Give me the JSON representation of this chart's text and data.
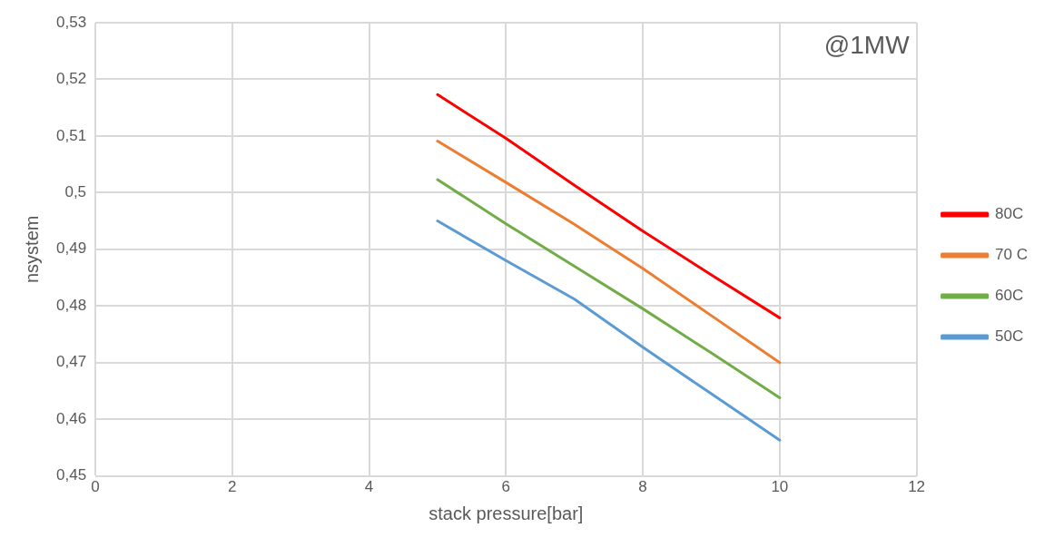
{
  "chart_data": {
    "type": "line",
    "xlabel": "stack pressure[bar]",
    "ylabel": "nsystem",
    "annotations": [
      "@1MW"
    ],
    "x": [
      5,
      6,
      7,
      8,
      9,
      10
    ],
    "series": [
      {
        "name": "80C",
        "color": "#ff0000",
        "values": [
          0.5173,
          0.5096,
          0.5013,
          0.4932,
          0.4855,
          0.4779
        ]
      },
      {
        "name": "70 C",
        "color": "#ed7d31",
        "values": [
          0.5091,
          0.5018,
          0.4944,
          0.4866,
          0.4783,
          0.47
        ]
      },
      {
        "name": "60C",
        "color": "#70ad47",
        "values": [
          0.5023,
          0.4945,
          0.487,
          0.4795,
          0.4717,
          0.4638
        ]
      },
      {
        "name": "50C",
        "color": "#5b9bd5",
        "values": [
          0.495,
          0.488,
          0.4812,
          0.4727,
          0.4645,
          0.4563
        ]
      }
    ],
    "xlim": [
      0,
      12
    ],
    "xticks": [
      0,
      2,
      4,
      6,
      8,
      10,
      12
    ],
    "ylim": [
      0.45,
      0.53
    ],
    "yticks": [
      {
        "value": 0.45,
        "label": "0,45"
      },
      {
        "value": 0.46,
        "label": "0,46"
      },
      {
        "value": 0.47,
        "label": "0,47"
      },
      {
        "value": 0.48,
        "label": "0,48"
      },
      {
        "value": 0.49,
        "label": "0,49"
      },
      {
        "value": 0.5,
        "label": "0,5"
      },
      {
        "value": 0.51,
        "label": "0,51"
      },
      {
        "value": 0.52,
        "label": "0,52"
      },
      {
        "value": 0.53,
        "label": "0,53"
      }
    ],
    "grid": true,
    "legend": "right",
    "marker": "none",
    "line_style": "solid"
  }
}
